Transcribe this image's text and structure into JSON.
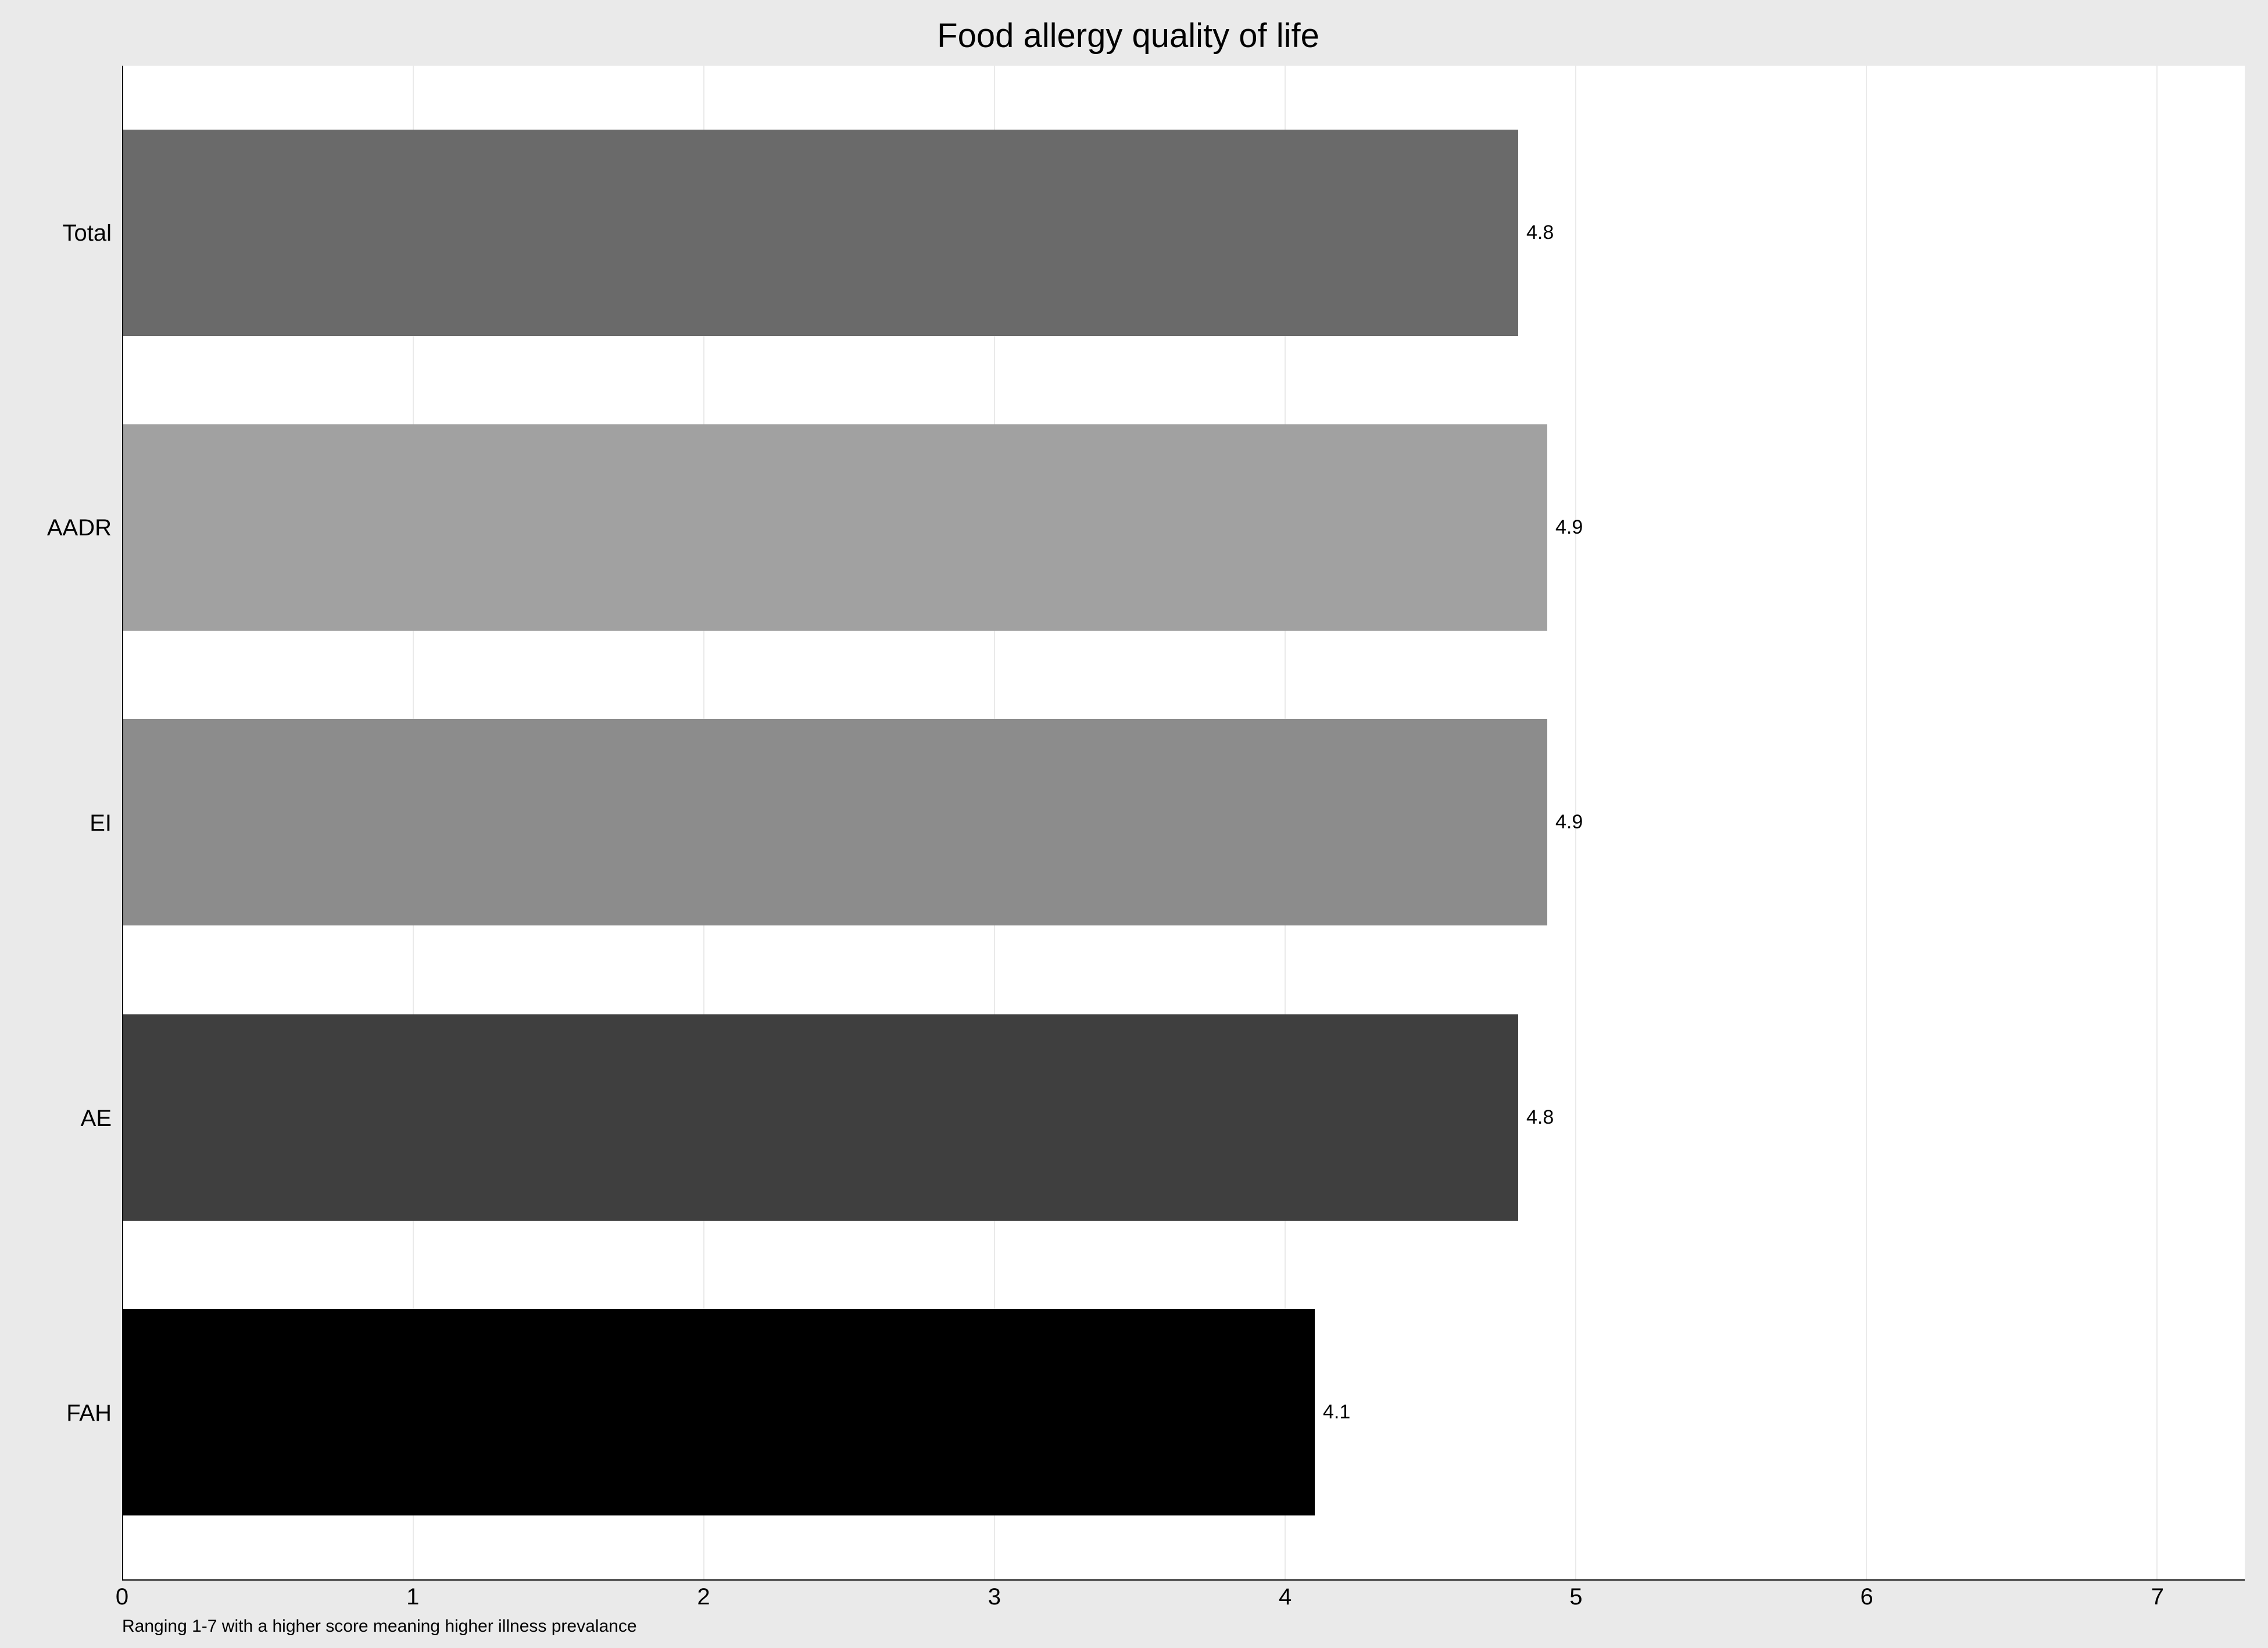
{
  "chart": {
    "type": "bar-horizontal",
    "title": "Food allergy quality of life",
    "title_fontsize": 58,
    "footnote": "Ranging 1-7 with a higher score meaning higher illness prevalance",
    "footnote_fontsize": 30,
    "background_color": "#eaeaea",
    "plot_background": "#ffffff",
    "grid_color": "#eaeaea",
    "axis_color": "#000000",
    "x": {
      "min": 0,
      "max": 7.3,
      "ticks": [
        0,
        1,
        2,
        3,
        4,
        5,
        6,
        7
      ],
      "tick_fontsize": 40
    },
    "y": {
      "label_fontsize": 40
    },
    "bar_value_fontsize": 34,
    "bars": [
      {
        "category": "Total",
        "value": 4.8,
        "value_label": "4.8",
        "color": "#6a6a6a"
      },
      {
        "category": "AADR",
        "value": 4.9,
        "value_label": "4.9",
        "color": "#a1a1a1"
      },
      {
        "category": "EI",
        "value": 4.9,
        "value_label": "4.9",
        "color": "#8c8c8c"
      },
      {
        "category": "AE",
        "value": 4.8,
        "value_label": "4.8",
        "color": "#3f3f3f"
      },
      {
        "category": "FAH",
        "value": 4.1,
        "value_label": "4.1",
        "color": "#000000"
      }
    ]
  }
}
